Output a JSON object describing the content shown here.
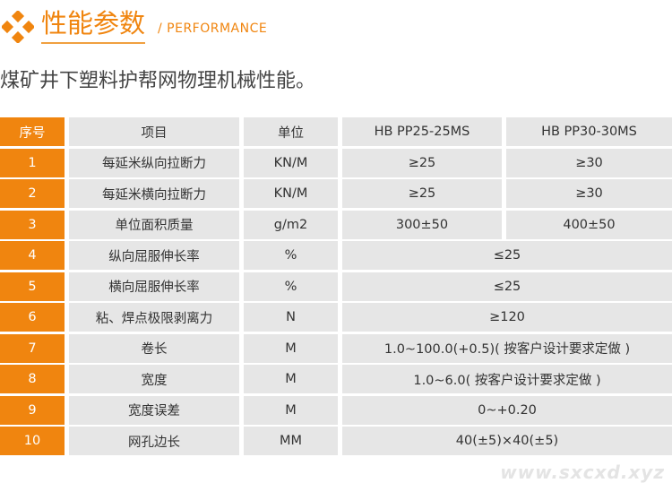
{
  "header": {
    "title": "性能参数",
    "subtitle": "/ PERFORMANCE",
    "description": "煤矿井下塑料护帮网物理机械性能。",
    "accent_color": "#f0850f"
  },
  "table": {
    "columns": [
      "序号",
      "项目",
      "单位",
      "HB PP25-25MS",
      "HB PP30-30MS"
    ],
    "rows": [
      {
        "no": "1",
        "item": "每延米纵向拉断力",
        "unit": "KN/M",
        "values": [
          "≥25",
          "≥30"
        ]
      },
      {
        "no": "2",
        "item": "每延米横向拉断力",
        "unit": "KN/M",
        "values": [
          "≥25",
          "≥30"
        ]
      },
      {
        "no": "3",
        "item": "单位面积质量",
        "unit": "g/m2",
        "values": [
          "300±50",
          "400±50"
        ]
      },
      {
        "no": "4",
        "item": "纵向屈服伸长率",
        "unit": "%",
        "values": [
          "≤25"
        ]
      },
      {
        "no": "5",
        "item": "横向屈服伸长率",
        "unit": "%",
        "values": [
          "≤25"
        ]
      },
      {
        "no": "6",
        "item": "粘、焊点极限剥离力",
        "unit": "N",
        "values": [
          "≥120"
        ]
      },
      {
        "no": "7",
        "item": "卷长",
        "unit": "M",
        "values": [
          "1.0~100.0(+0.5)( 按客户设计要求定做 )"
        ]
      },
      {
        "no": "8",
        "item": "宽度",
        "unit": "M",
        "values": [
          "1.0~6.0( 按客户设计要求定做 )"
        ]
      },
      {
        "no": "9",
        "item": "宽度误差",
        "unit": "M",
        "values": [
          "0~+0.20"
        ]
      },
      {
        "no": "10",
        "item": "网孔边长",
        "unit": "MM",
        "values": [
          "40(±5)×40(±5)"
        ]
      }
    ]
  },
  "watermark": "www.sxcxd.xyz"
}
